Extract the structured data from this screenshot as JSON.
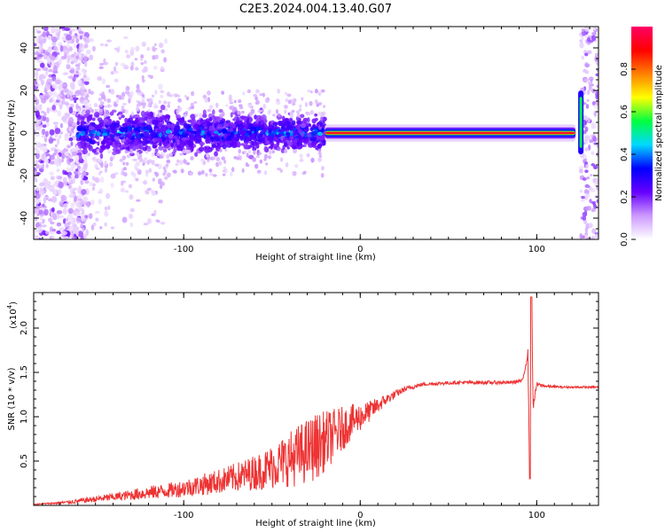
{
  "figure": {
    "title": "C2E3.2024.004.13.40.G07"
  },
  "chart_data": [
    {
      "type": "heatmap",
      "xlabel": "Height of straight line (km)",
      "ylabel": "Frequency (Hz)",
      "xlim": [
        -185,
        135
      ],
      "ylim": [
        -50,
        50
      ],
      "xticks": [
        -100,
        0,
        100
      ],
      "yticks": [
        -40,
        -20,
        0,
        20,
        40
      ],
      "grid": false,
      "colorbar": {
        "label": "Normalized spectral amplitude",
        "range": [
          0.0,
          1.0
        ],
        "ticks": [
          "0.0",
          "0.2",
          "0.4",
          "0.6",
          "0.8"
        ],
        "tick_values": [
          0.0,
          0.2,
          0.4,
          0.6,
          0.8
        ],
        "colormap": [
          "#ffffff",
          "#cc99ff",
          "#6600ff",
          "#0000ff",
          "#00d8ff",
          "#00ff40",
          "#ffff00",
          "#ff8000",
          "#ff0000",
          "#ff0066"
        ]
      },
      "features": {
        "noisy_region_x": [
          -185,
          -160
        ],
        "broad_signal_x": [
          -160,
          -20
        ],
        "broad_signal_width_hz": 12,
        "narrow_line_x": [
          -20,
          122
        ],
        "narrow_line_freq": 0,
        "narrow_line_amplitude": 0.95,
        "edge_feature_x": 125,
        "edge_feature_freq_range": [
          -10,
          20
        ]
      }
    },
    {
      "type": "line",
      "xlabel": "Height of straight line (km)",
      "ylabel": "SNR (10 * v/v)",
      "y_multiplier_label": "(x10",
      "y_multiplier_exp": "4",
      "y_multiplier_close": ")",
      "xlim": [
        -185,
        135
      ],
      "ylim": [
        0,
        2.4
      ],
      "xticks": [
        -100,
        0,
        100
      ],
      "yticks": [
        0.5,
        1.0,
        1.5,
        2.0
      ],
      "ytick_labels": [
        "0.5",
        "1.0",
        "1.5",
        "2.0"
      ],
      "grid": false,
      "series": [
        {
          "color": "#ee3333",
          "x": [
            -185,
            -175,
            -165,
            -155,
            -145,
            -135,
            -125,
            -115,
            -105,
            -95,
            -85,
            -75,
            -65,
            -55,
            -45,
            -35,
            -25,
            -15,
            -5,
            5,
            15,
            25,
            35,
            45,
            55,
            65,
            75,
            85,
            92,
            95,
            96,
            97,
            98,
            100,
            105,
            115,
            125,
            135
          ],
          "values": [
            0.01,
            0.02,
            0.03,
            0.05,
            0.07,
            0.09,
            0.11,
            0.13,
            0.15,
            0.18,
            0.21,
            0.25,
            0.29,
            0.33,
            0.4,
            0.46,
            0.55,
            0.7,
            0.88,
            1.02,
            1.18,
            1.3,
            1.36,
            1.37,
            1.38,
            1.38,
            1.38,
            1.38,
            1.4,
            1.7,
            0.3,
            2.35,
            1.1,
            1.36,
            1.34,
            1.33,
            1.33,
            1.33
          ],
          "noise_amplitude": [
            0.005,
            0.01,
            0.02,
            0.03,
            0.04,
            0.05,
            0.07,
            0.08,
            0.09,
            0.11,
            0.13,
            0.15,
            0.18,
            0.22,
            0.28,
            0.35,
            0.38,
            0.3,
            0.2,
            0.12,
            0.06,
            0.03,
            0.02,
            0.02,
            0.02,
            0.02,
            0.02,
            0.02,
            0.02,
            0.05,
            0.05,
            0.05,
            0.05,
            0.02,
            0.015,
            0.012,
            0.012,
            0.012
          ]
        }
      ]
    }
  ]
}
